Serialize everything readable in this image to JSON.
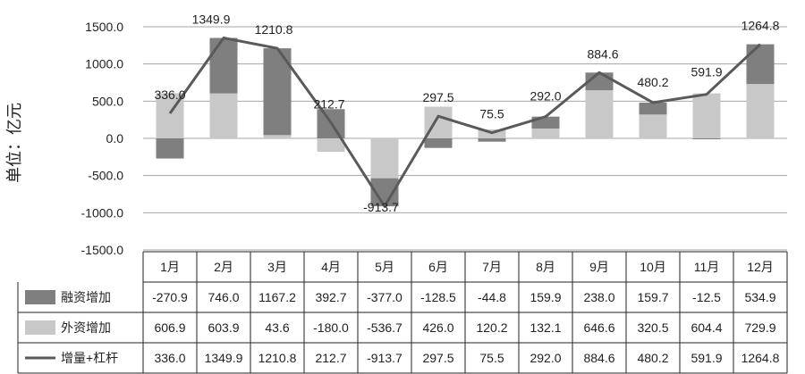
{
  "chart_data": {
    "type": "bar",
    "subtype": "stacked-bar-with-line-and-data-table",
    "unit_label": "单位：亿元",
    "categories": [
      "1月",
      "2月",
      "3月",
      "4月",
      "5月",
      "6月",
      "7月",
      "8月",
      "9月",
      "10月",
      "11月",
      "12月"
    ],
    "series": [
      {
        "name": "融资增加",
        "kind": "bar",
        "color": "#7f7f7f",
        "values": [
          -270.9,
          746.0,
          1167.2,
          392.7,
          -377.0,
          -128.5,
          -44.8,
          159.9,
          238.0,
          159.7,
          -12.5,
          534.9
        ]
      },
      {
        "name": "外资增加",
        "kind": "bar",
        "color": "#c8c8c8",
        "values": [
          606.9,
          603.9,
          43.6,
          -180.0,
          -536.7,
          426.0,
          120.2,
          132.1,
          646.6,
          320.5,
          604.4,
          729.9
        ]
      },
      {
        "name": "增量+杠杆",
        "kind": "line",
        "color": "#5a5a5a",
        "values": [
          336.0,
          1349.9,
          1210.8,
          212.7,
          -913.7,
          297.5,
          75.5,
          292.0,
          884.6,
          480.2,
          591.9,
          1264.8
        ]
      }
    ],
    "y_ticks": [
      "1500.0",
      "1000.0",
      "500.0",
      "0.0",
      "-500.0",
      "-1000.0",
      "-1500.0"
    ],
    "ylim": [
      -1500,
      1500
    ],
    "grid": true,
    "table": {
      "rows": [
        [
          "-270.9",
          "746.0",
          "1167.2",
          "392.7",
          "-377.0",
          "-128.5",
          "-44.8",
          "159.9",
          "238.0",
          "159.7",
          "-12.5",
          "534.9"
        ],
        [
          "606.9",
          "603.9",
          "43.6",
          "-180.0",
          "-536.7",
          "426.0",
          "120.2",
          "132.1",
          "646.6",
          "320.5",
          "604.4",
          "729.9"
        ],
        [
          "336.0",
          "1349.9",
          "1210.8",
          "212.7",
          "-913.7",
          "297.5",
          "75.5",
          "292.0",
          "884.6",
          "480.2",
          "591.9",
          "1264.8"
        ]
      ]
    }
  }
}
